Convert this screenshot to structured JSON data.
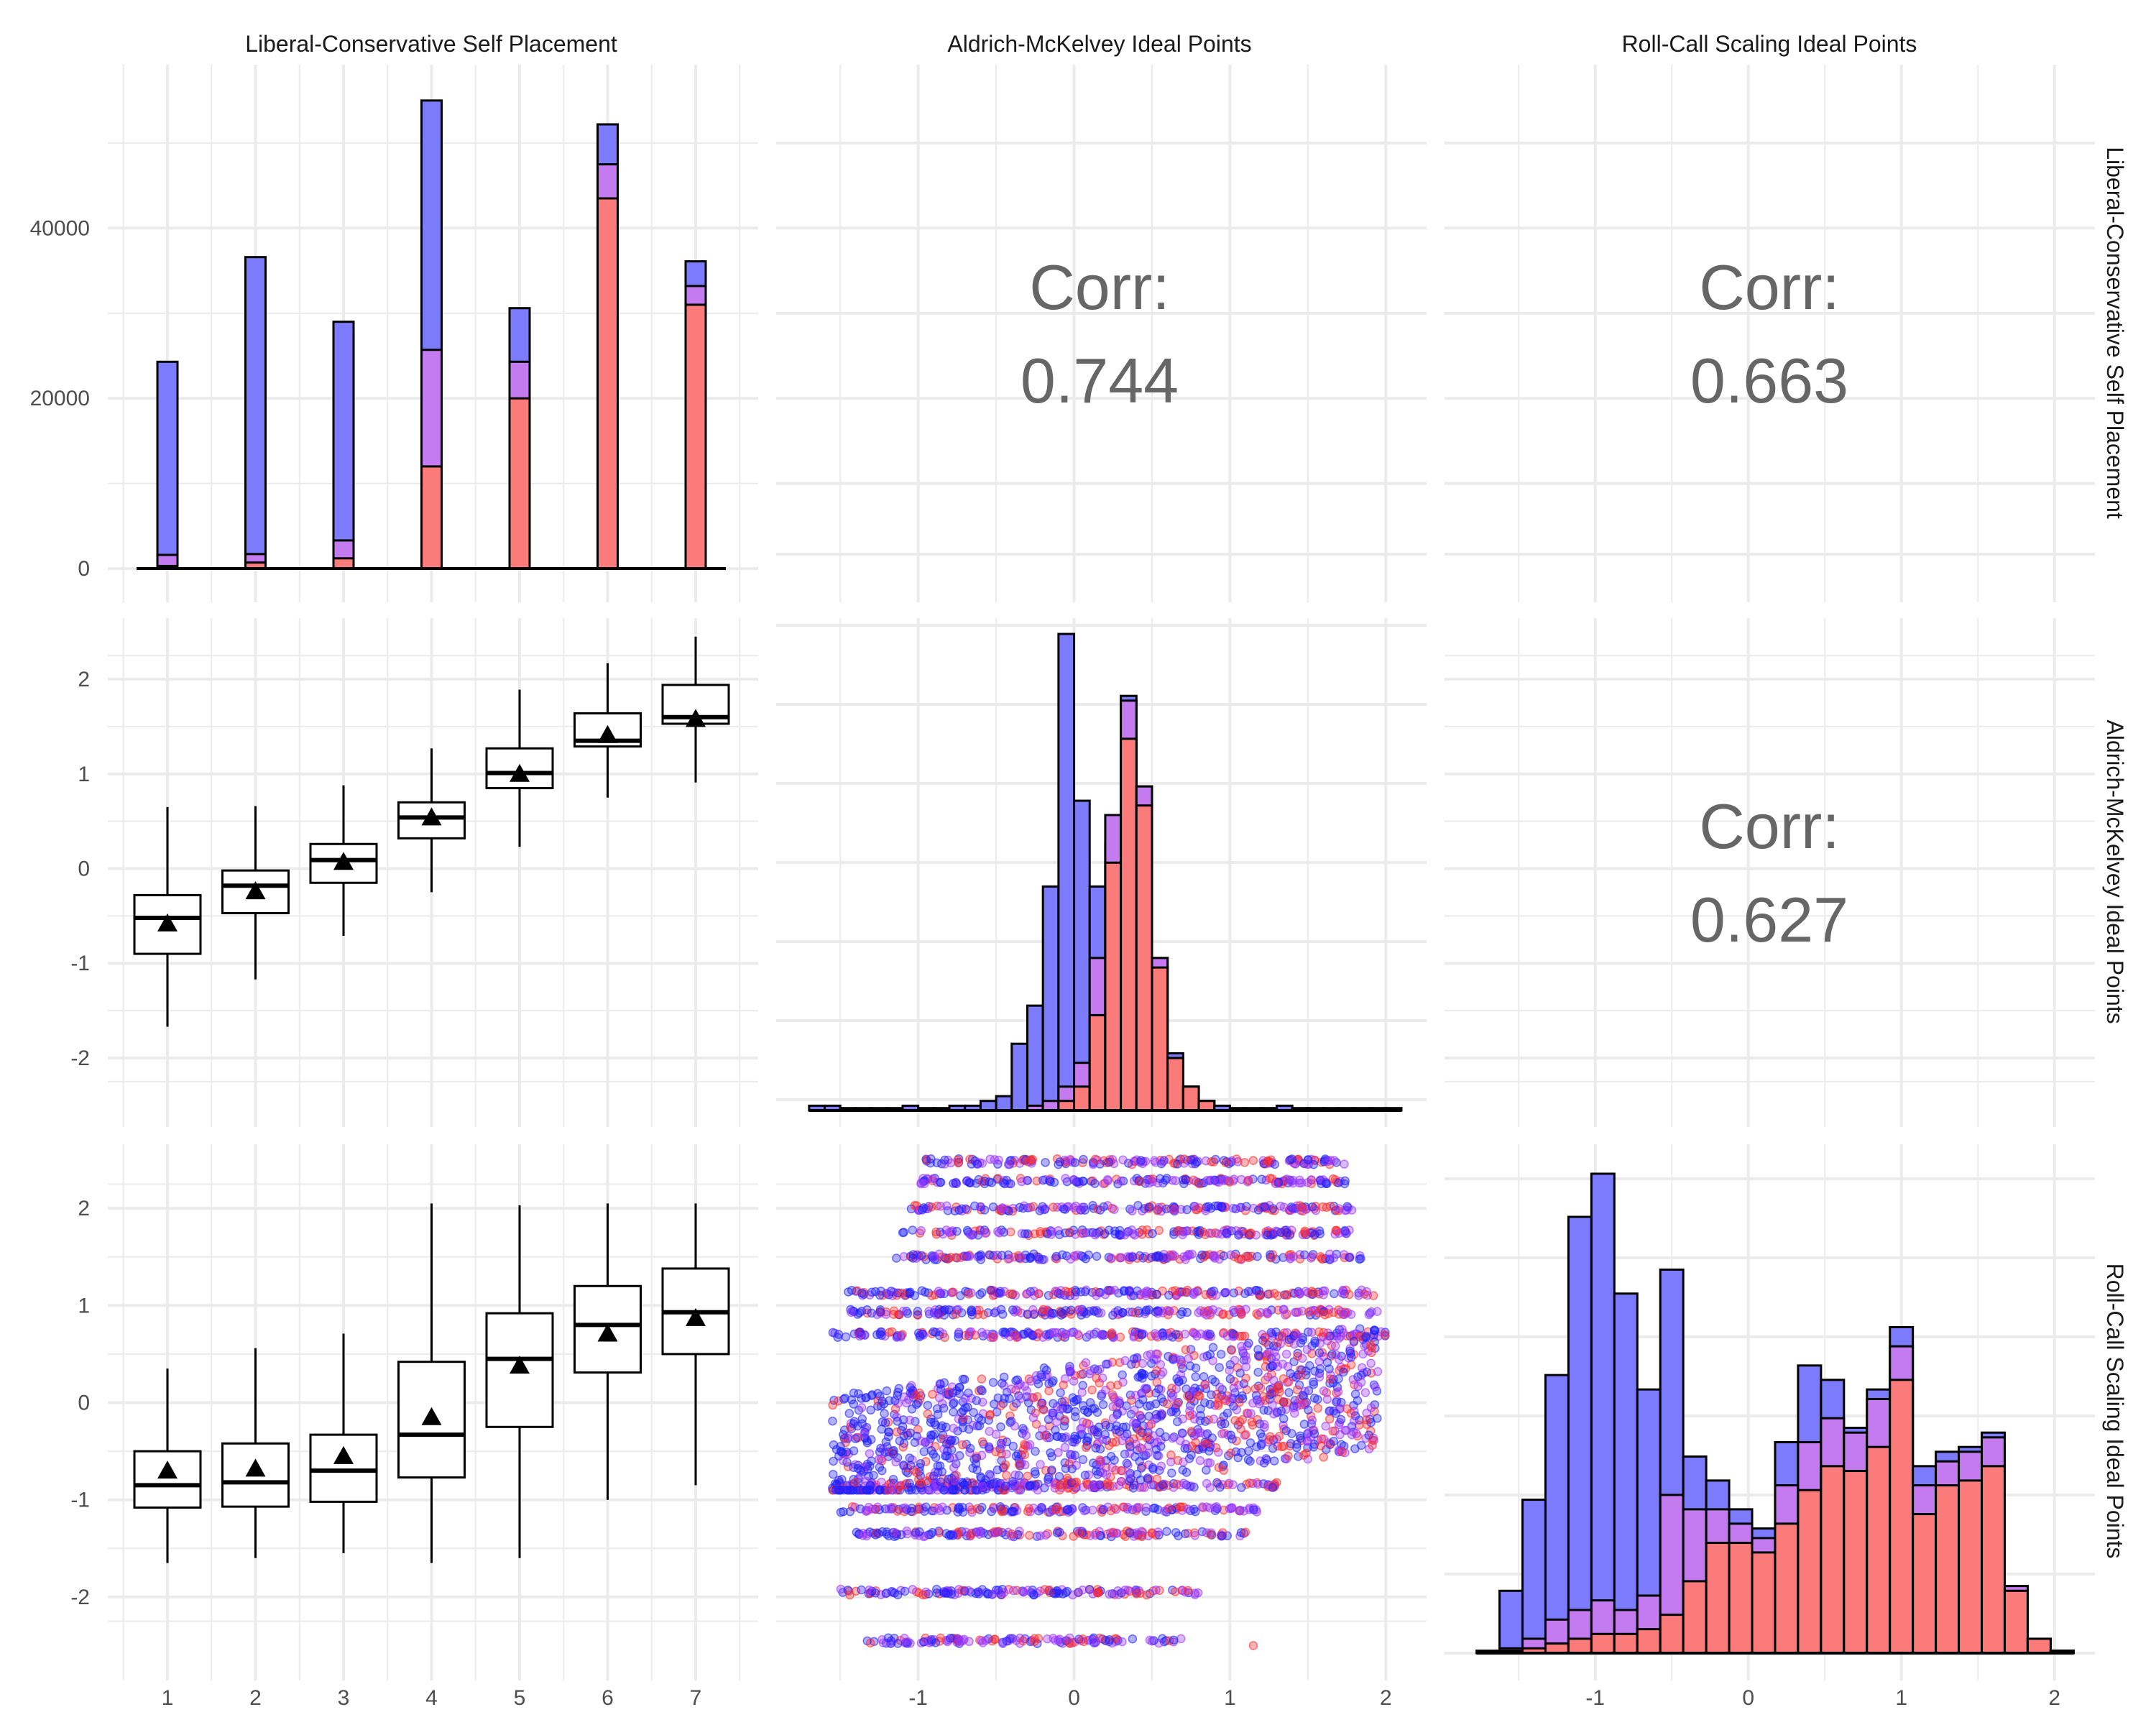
{
  "figure": {
    "variables": [
      "Liberal-Conservative Self Placement",
      "Aldrich-McKelvey Ideal Points",
      "Roll-Call Scaling Ideal Points"
    ]
  },
  "colors": {
    "group_1": "#7b7bfb",
    "group_2": "#c47bf0",
    "group_3": "#fb7b7b",
    "dot_1": "#2020ff",
    "dot_2": "#9933ff",
    "dot_3": "#ff2a2a",
    "grid": "#ebebeb",
    "corr_text": "#666666"
  },
  "correlations": [
    {
      "row": 1,
      "col": 2,
      "label": "Corr:",
      "value": "0.744"
    },
    {
      "row": 1,
      "col": 3,
      "label": "Corr:",
      "value": "0.663"
    },
    {
      "row": 2,
      "col": 3,
      "label": "Corr:",
      "value": "0.627"
    }
  ],
  "chart_data": [
    {
      "type": "bar",
      "panel": "row1-col1",
      "variable": "Liberal-Conservative Self Placement",
      "categories": [
        "1",
        "2",
        "3",
        "4",
        "5",
        "6",
        "7"
      ],
      "series_stacked_cumulative": {
        "group_3": [
          300,
          700,
          1200,
          12000,
          20000,
          43500,
          31000
        ],
        "group_3_plus_2": [
          1600,
          1700,
          3300,
          25700,
          24300,
          47500,
          33200
        ],
        "total": [
          24300,
          36600,
          29000,
          55000,
          30600,
          52200,
          36100
        ]
      },
      "ylim": [
        0,
        56000
      ],
      "y_ticks": [
        0,
        20000,
        40000
      ]
    },
    {
      "type": "box",
      "panel": "row2-col1",
      "x": "Liberal-Conservative Self Placement",
      "y": "Aldrich-McKelvey Ideal Points",
      "categories": [
        "1",
        "2",
        "3",
        "4",
        "5",
        "6",
        "7"
      ],
      "boxes": [
        {
          "wlo": -1.67,
          "q1": -0.9,
          "median": -0.52,
          "q3": -0.28,
          "whi": 0.65,
          "mean": -0.58
        },
        {
          "wlo": -1.17,
          "q1": -0.47,
          "median": -0.18,
          "q3": -0.02,
          "whi": 0.66,
          "mean": -0.24
        },
        {
          "wlo": -0.71,
          "q1": -0.15,
          "median": 0.09,
          "q3": 0.26,
          "whi": 0.88,
          "mean": 0.07
        },
        {
          "wlo": -0.25,
          "q1": 0.32,
          "median": 0.54,
          "q3": 0.7,
          "whi": 1.27,
          "mean": 0.54
        },
        {
          "wlo": 0.23,
          "q1": 0.85,
          "median": 1.01,
          "q3": 1.27,
          "whi": 1.89,
          "mean": 1.0
        },
        {
          "wlo": 0.75,
          "q1": 1.29,
          "median": 1.35,
          "q3": 1.64,
          "whi": 2.17,
          "mean": 1.41
        },
        {
          "wlo": 0.91,
          "q1": 1.53,
          "median": 1.6,
          "q3": 1.94,
          "whi": 2.45,
          "mean": 1.58
        }
      ],
      "y_ticks": [
        -2,
        -1,
        0,
        1,
        2
      ],
      "ylim": [
        -2.6,
        2.6
      ]
    },
    {
      "type": "box",
      "panel": "row3-col1",
      "x": "Liberal-Conservative Self Placement",
      "y": "Roll-Call Scaling Ideal Points",
      "categories": [
        "1",
        "2",
        "3",
        "4",
        "5",
        "6",
        "7"
      ],
      "boxes": [
        {
          "wlo": -1.65,
          "q1": -1.08,
          "median": -0.85,
          "q3": -0.5,
          "whi": 0.35,
          "mean": -0.7
        },
        {
          "wlo": -1.6,
          "q1": -1.07,
          "median": -0.82,
          "q3": -0.42,
          "whi": 0.56,
          "mean": -0.68
        },
        {
          "wlo": -1.55,
          "q1": -1.02,
          "median": -0.7,
          "q3": -0.33,
          "whi": 0.71,
          "mean": -0.55
        },
        {
          "wlo": -1.65,
          "q1": -0.77,
          "median": -0.33,
          "q3": 0.42,
          "whi": 2.05,
          "mean": -0.15
        },
        {
          "wlo": -1.6,
          "q1": -0.25,
          "median": 0.45,
          "q3": 0.92,
          "whi": 2.03,
          "mean": 0.38
        },
        {
          "wlo": -1.0,
          "q1": 0.31,
          "median": 0.8,
          "q3": 1.2,
          "whi": 2.05,
          "mean": 0.71
        },
        {
          "wlo": -0.85,
          "q1": 0.5,
          "median": 0.93,
          "q3": 1.38,
          "whi": 2.05,
          "mean": 0.87
        }
      ],
      "y_ticks": [
        -2,
        -1,
        0,
        1,
        2
      ],
      "ylim": [
        -2.6,
        2.6
      ]
    },
    {
      "type": "bar",
      "panel": "row2-col2",
      "variable": "Aldrich-McKelvey Ideal Points",
      "bin_centers": [
        -1.65,
        -1.55,
        -1.45,
        -1.35,
        -1.25,
        -1.15,
        -1.05,
        -0.95,
        -0.85,
        -0.75,
        -0.65,
        -0.55,
        -0.45,
        -0.35,
        -0.25,
        -0.15,
        -0.05,
        0.05,
        0.15,
        0.25,
        0.35,
        0.45,
        0.55,
        0.65,
        0.75,
        0.85,
        0.95,
        1.05,
        1.15,
        1.25,
        1.35,
        1.45,
        1.55,
        1.65,
        1.75,
        1.85,
        1.95,
        2.05
      ],
      "series_stacked_cumulative": {
        "group_3": [
          0,
          0,
          0,
          0,
          0,
          0,
          0,
          0,
          0,
          0,
          0,
          0,
          0,
          0,
          0,
          0,
          0.02,
          0.05,
          0.2,
          0.52,
          0.78,
          0.64,
          0.3,
          0.11,
          0.05,
          0.02,
          0,
          0,
          0,
          0,
          0,
          0,
          0,
          0,
          0,
          0,
          0,
          0
        ],
        "group_3_plus_2": [
          0,
          0,
          0,
          0,
          0,
          0,
          0,
          0,
          0,
          0,
          0,
          0,
          0,
          0,
          0.01,
          0.02,
          0.05,
          0.1,
          0.32,
          0.62,
          0.86,
          0.68,
          0.32,
          0.11,
          0.05,
          0.02,
          0,
          0,
          0,
          0,
          0,
          0,
          0,
          0,
          0,
          0,
          0,
          0
        ],
        "total": [
          0.01,
          0.01,
          0.005,
          0.005,
          0.005,
          0.005,
          0.01,
          0.005,
          0.005,
          0.01,
          0.01,
          0.02,
          0.03,
          0.14,
          0.22,
          0.47,
          1.0,
          0.65,
          0.47,
          0.56,
          0.87,
          0.68,
          0.32,
          0.12,
          0.05,
          0.02,
          0.01,
          0.005,
          0.005,
          0.005,
          0.01,
          0.005,
          0.005,
          0.005,
          0.005,
          0.005,
          0.005,
          0.005
        ]
      },
      "x_ticks": [
        -1,
        0,
        1,
        2
      ],
      "xlim": [
        -1.75,
        2.1
      ]
    },
    {
      "type": "scatter",
      "panel": "row3-col2",
      "x": "Aldrich-McKelvey Ideal Points",
      "y": "Roll-Call Scaling Ideal Points",
      "x_ticks": [
        -1,
        0,
        1,
        2
      ],
      "y_ticks": [
        -2,
        -1,
        0,
        1,
        2
      ],
      "xlim": [
        -1.75,
        2.1
      ],
      "ylim": [
        -2.6,
        2.6
      ],
      "bands": [
        {
          "y": 2.48,
          "xmin": -0.95,
          "xmax": 1.75
        },
        {
          "y": 2.28,
          "xmin": -1.0,
          "xmax": 1.75
        },
        {
          "y": 2.0,
          "xmin": -1.05,
          "xmax": 1.8
        },
        {
          "y": 1.75,
          "xmin": -1.1,
          "xmax": 1.8
        },
        {
          "y": 1.5,
          "xmin": -1.15,
          "xmax": 1.85
        },
        {
          "y": 1.13,
          "xmin": -1.45,
          "xmax": 1.95
        },
        {
          "y": 0.93,
          "xmin": -1.5,
          "xmax": 1.95
        },
        {
          "y": 0.7,
          "xmin": -1.55,
          "xmax": 2.0
        },
        {
          "y": -0.85,
          "xmin": -1.55,
          "xmax": 1.3
        },
        {
          "y": -1.1,
          "xmin": -1.5,
          "xmax": 1.2
        },
        {
          "y": -1.35,
          "xmin": -1.4,
          "xmax": 1.1
        },
        {
          "y": -1.95,
          "xmin": -1.5,
          "xmax": 0.85
        },
        {
          "y": -2.45,
          "xmin": -1.35,
          "xmax": 0.7
        }
      ],
      "cloud": {
        "x_center": 0.2,
        "x_spread": 1.7,
        "y_min": -0.9,
        "y_max": 0.9,
        "slope": 0.3
      },
      "outlier": {
        "x": 1.15,
        "y": -2.5
      }
    },
    {
      "type": "bar",
      "panel": "row3-col3",
      "variable": "Roll-Call Scaling Ideal Points",
      "bin_centers": [
        -1.7,
        -1.55,
        -1.4,
        -1.25,
        -1.1,
        -0.95,
        -0.8,
        -0.65,
        -0.5,
        -0.35,
        -0.2,
        -0.05,
        0.1,
        0.25,
        0.4,
        0.55,
        0.7,
        0.85,
        1.0,
        1.15,
        1.3,
        1.45,
        1.6,
        1.75,
        1.9,
        2.05
      ],
      "series_stacked_cumulative": {
        "group_3": [
          0,
          0.005,
          0.01,
          0.02,
          0.03,
          0.04,
          0.04,
          0.05,
          0.08,
          0.15,
          0.23,
          0.23,
          0.21,
          0.27,
          0.34,
          0.39,
          0.38,
          0.43,
          0.57,
          0.29,
          0.35,
          0.36,
          0.39,
          0.13,
          0.03,
          0.005
        ],
        "group_3_plus_2": [
          0,
          0.01,
          0.03,
          0.07,
          0.09,
          0.11,
          0.09,
          0.12,
          0.33,
          0.3,
          0.3,
          0.27,
          0.24,
          0.35,
          0.44,
          0.49,
          0.46,
          0.53,
          0.64,
          0.35,
          0.4,
          0.42,
          0.45,
          0.14,
          0.03,
          0.005
        ],
        "total": [
          0.005,
          0.13,
          0.32,
          0.58,
          0.91,
          1.0,
          0.75,
          0.55,
          0.8,
          0.41,
          0.36,
          0.3,
          0.26,
          0.44,
          0.6,
          0.57,
          0.47,
          0.55,
          0.68,
          0.39,
          0.42,
          0.43,
          0.46,
          0.14,
          0.03,
          0.005
        ]
      },
      "x_ticks": [
        -1,
        0,
        1,
        2
      ],
      "xlim": [
        -1.9,
        2.1
      ]
    }
  ]
}
